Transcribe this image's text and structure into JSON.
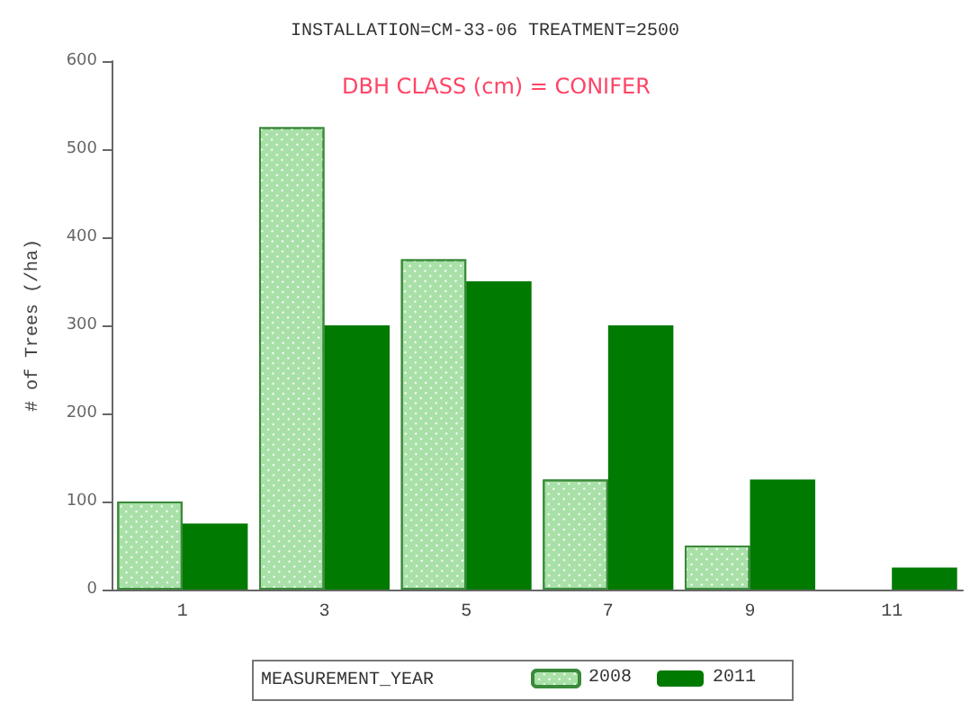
{
  "chart_data": {
    "type": "bar",
    "title": "INSTALLATION=CM-33-06 TREATMENT=2500",
    "xlabel": null,
    "ylabel": "# of Trees (/ha)",
    "legend_title": "MEASUREMENT_YEAR",
    "annotations": [
      "DBH CLASS (cm) = CONIFER"
    ],
    "categories": [
      "1",
      "3",
      "5",
      "7",
      "9",
      "11"
    ],
    "series": [
      {
        "name": "2008",
        "color": "#a8e0a8",
        "values": [
          100,
          525,
          375,
          125,
          50,
          null
        ]
      },
      {
        "name": "2011",
        "color": "#007a00",
        "values": [
          75,
          300,
          350,
          300,
          125,
          25
        ]
      }
    ],
    "ylim": [
      0,
      600
    ],
    "yticks": [
      0,
      100,
      200,
      300,
      400,
      500,
      600
    ],
    "grid": false,
    "legend": "bottom"
  }
}
